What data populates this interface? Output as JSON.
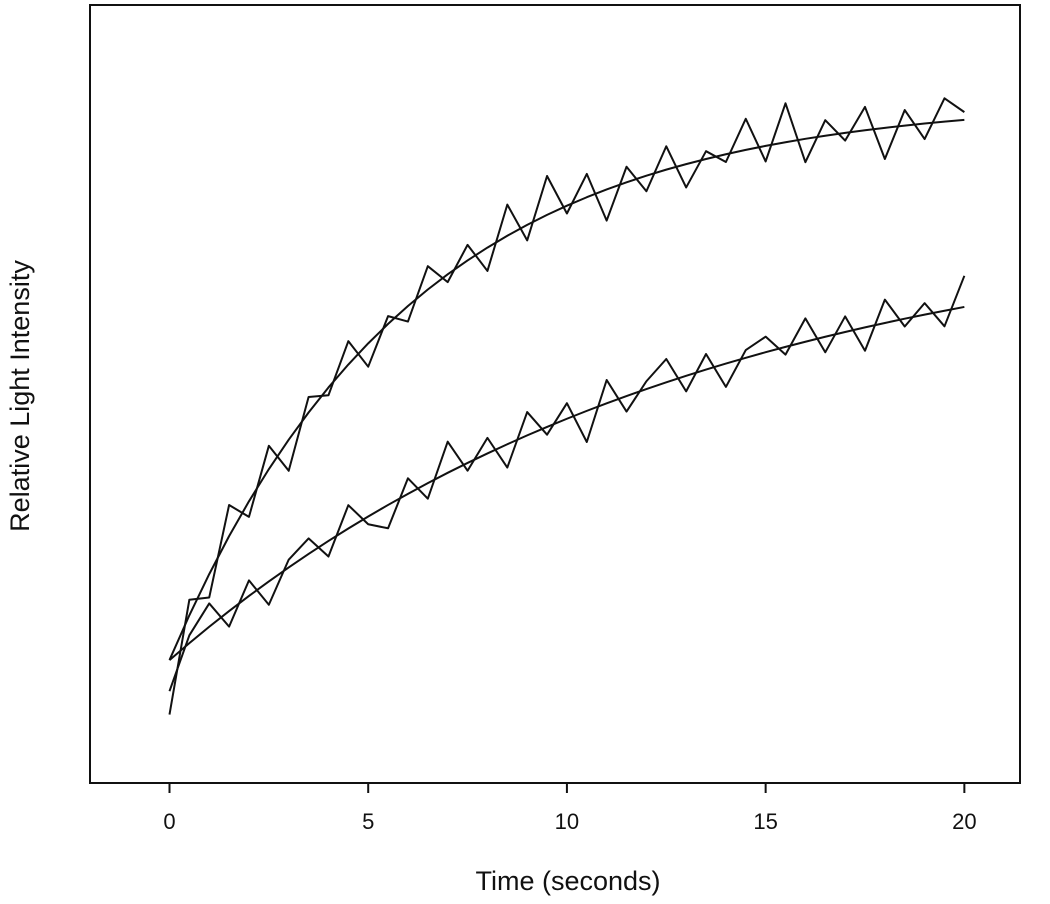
{
  "chart_data": {
    "type": "line",
    "x_label": "Time (seconds)",
    "y_label": "Relative Light Intensity",
    "x": [
      0,
      0.5,
      1,
      1.5,
      2,
      2.5,
      3,
      3.5,
      4,
      4.5,
      5,
      5.5,
      6,
      6.5,
      7,
      7.5,
      8,
      8.5,
      9,
      9.5,
      10,
      10.5,
      11,
      11.5,
      12,
      12.5,
      13,
      13.5,
      14,
      14.5,
      15,
      15.5,
      16,
      16.5,
      17,
      17.5,
      18,
      18.5,
      19,
      19.5,
      20
    ],
    "xlim": [
      -2,
      21.4
    ],
    "xticks": [
      0,
      5,
      10,
      15,
      20
    ],
    "ylim": [
      0,
      100
    ],
    "series": [
      {
        "color": "#111111",
        "values": [
          8.8,
          23.56,
          23.85,
          35.73,
          34.21,
          43.34,
          40.13,
          49.62,
          49.84,
          56.79,
          53.51,
          60.01,
          59.31,
          66.43,
          64.38,
          69.17,
          65.82,
          74.34,
          69.74,
          78.02,
          73.2,
          78.29,
          72.29,
          79.21,
          76.06,
          81.84,
          76.55,
          81.21,
          79.82,
          85.38,
          79.89,
          87.36,
          79.8,
          85.2,
          82.57,
          86.9,
          80.21,
          86.5,
          82.77,
          88.01,
          86.23
        ]
      },
      {
        "color": "#111111",
        "values": [
          15.8,
          21.56,
          26.85,
          31.73,
          36.21,
          40.34,
          44.13,
          47.62,
          50.84,
          53.79,
          56.51,
          59.01,
          61.31,
          63.43,
          65.38,
          67.17,
          68.82,
          70.34,
          71.74,
          73.02,
          74.2,
          75.29,
          76.29,
          77.21,
          78.06,
          78.84,
          79.55,
          80.21,
          80.82,
          81.38,
          81.89,
          82.36,
          82.8,
          83.2,
          83.57,
          83.9,
          84.21,
          84.5,
          84.77,
          85.01,
          85.23
        ]
      },
      {
        "color": "#111111",
        "values": [
          11.8,
          18.98,
          23.08,
          20.1,
          26.04,
          22.91,
          28.71,
          31.44,
          29.11,
          35.71,
          33.26,
          32.74,
          39.17,
          36.54,
          43.87,
          40.14,
          44.36,
          40.54,
          47.68,
          44.77,
          48.82,
          43.83,
          51.8,
          47.74,
          51.64,
          54.5,
          50.34,
          55.14,
          50.91,
          55.65,
          57.37,
          55.06,
          59.72,
          55.36,
          59.97,
          55.56,
          62.13,
          58.68,
          61.68,
          58.7,
          65.19
        ]
      },
      {
        "color": "#111111",
        "values": [
          15.8,
          17.98,
          20.08,
          22.1,
          24.04,
          25.91,
          27.71,
          29.44,
          31.11,
          32.71,
          34.26,
          35.74,
          37.17,
          38.54,
          39.87,
          41.14,
          42.36,
          43.54,
          44.68,
          45.77,
          46.82,
          47.83,
          48.8,
          49.74,
          50.64,
          51.5,
          52.34,
          53.14,
          53.91,
          54.65,
          55.37,
          56.06,
          56.72,
          57.36,
          57.97,
          58.56,
          59.13,
          59.68,
          60.2,
          60.7,
          61.19
        ]
      }
    ]
  }
}
